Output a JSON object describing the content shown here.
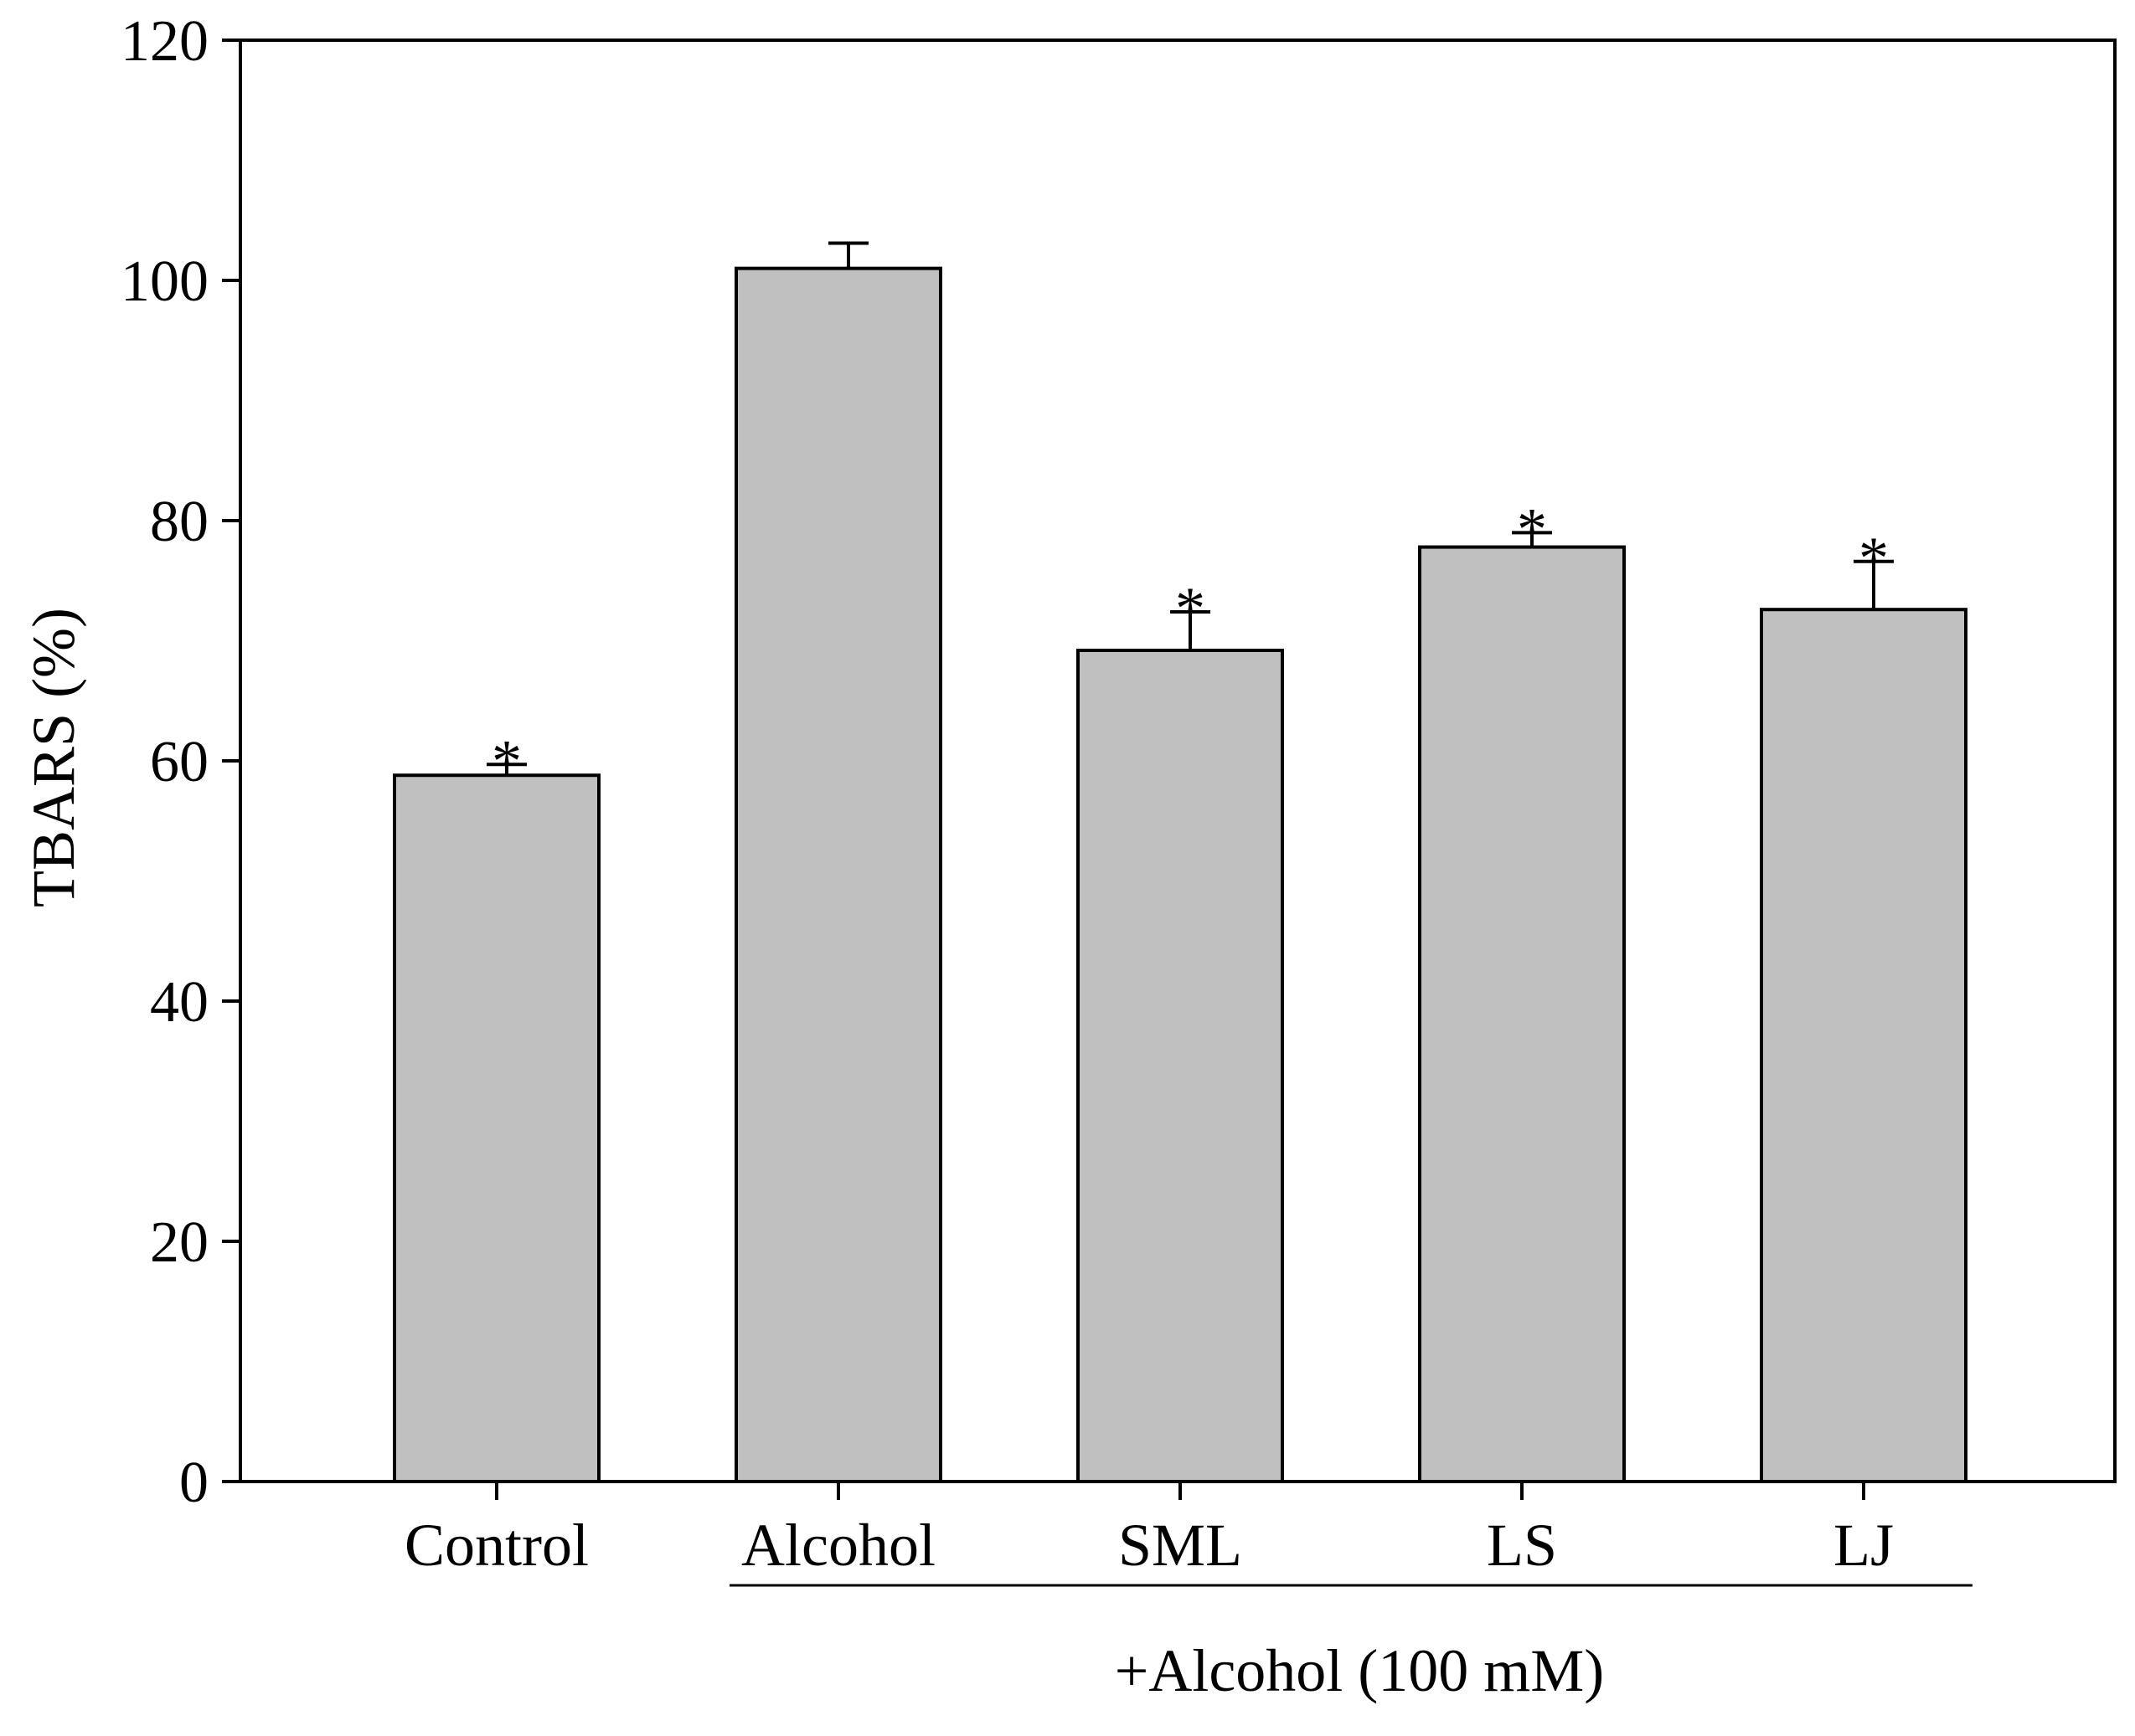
{
  "chart_data": {
    "type": "bar",
    "title": "",
    "ylabel": "TBARS (%)",
    "xlabel": "",
    "ylim": [
      0,
      120
    ],
    "yticks": [
      0,
      20,
      40,
      60,
      80,
      100,
      120
    ],
    "categories": [
      "Control",
      "Alcohol",
      "SML",
      "LS",
      "LJ"
    ],
    "values": [
      58.8,
      101.0,
      69.2,
      77.8,
      72.6
    ],
    "errors": [
      0.9,
      2.1,
      3.2,
      1.2,
      4.0
    ],
    "significance": [
      "*",
      "",
      "*",
      "*",
      "*"
    ],
    "bar_color": "#c0c0c0",
    "group_label": "+Alcohol (100 mM)",
    "group_categories": [
      "Alcohol",
      "SML",
      "LS",
      "LJ"
    ]
  }
}
